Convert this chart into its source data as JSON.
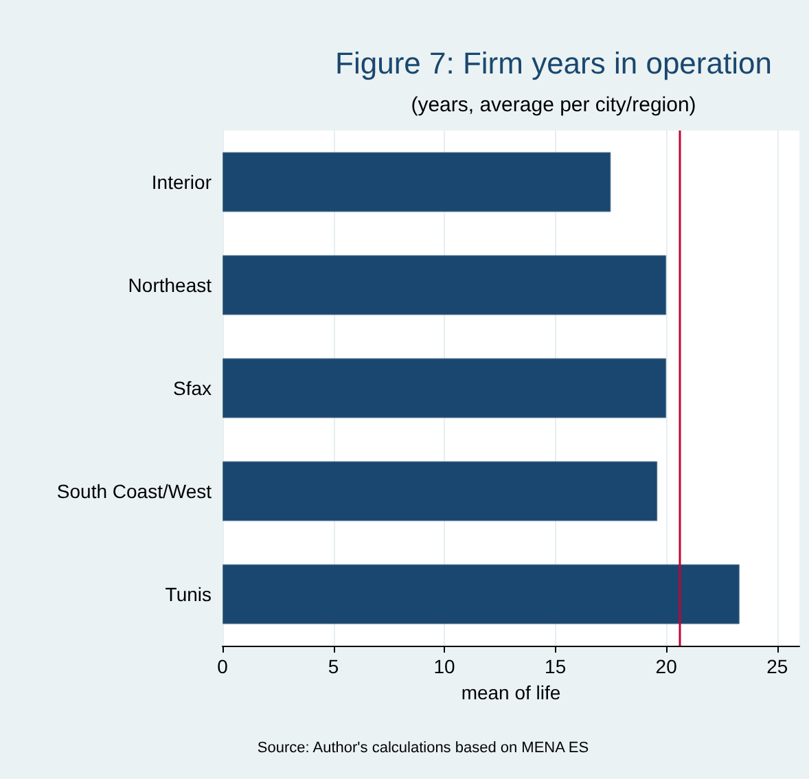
{
  "chart_data": {
    "type": "bar",
    "orientation": "horizontal",
    "title": "Figure 7: Firm years in operation",
    "subtitle": "(years, average per city/region)",
    "xlabel": "mean of life",
    "categories": [
      "Interior",
      "Northeast",
      "Sfax",
      "South Coast/West",
      "Tunis"
    ],
    "values": [
      17.5,
      20.0,
      20.0,
      19.6,
      23.3
    ],
    "color": "#1a476f",
    "xlim": [
      0,
      26
    ],
    "xticks": [
      0,
      5,
      10,
      15,
      20,
      25
    ],
    "grid": "x",
    "ref_lines": [
      {
        "axis": "x",
        "value": 20.6,
        "color": "#c10534"
      }
    ],
    "annotations": [
      "Source: Author's calculations based on MENA ES"
    ]
  }
}
